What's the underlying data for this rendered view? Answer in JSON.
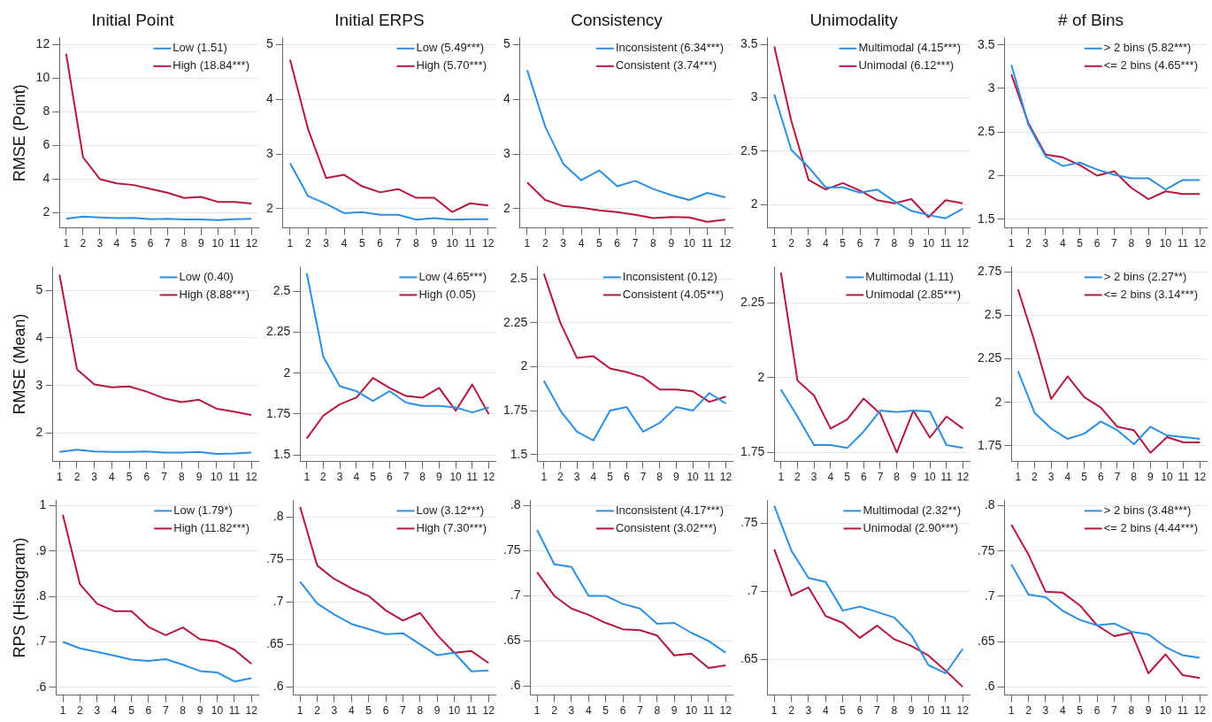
{
  "chart_data": [
    {
      "type": "line",
      "title": "Initial Point",
      "ylabel": "RMSE (Point)",
      "x": [
        1,
        2,
        3,
        4,
        5,
        6,
        7,
        8,
        9,
        10,
        11,
        12
      ],
      "xlim": [
        0.6,
        12.4
      ],
      "xticks": [
        1,
        2,
        3,
        4,
        5,
        6,
        7,
        8,
        9,
        10,
        11,
        12
      ],
      "ylim": [
        1.1,
        12.4
      ],
      "yticks": [
        2,
        4,
        6,
        8,
        10,
        12
      ],
      "grid": "y",
      "legend": "top right",
      "marker": "none",
      "series": [
        {
          "name": "Low (1.51)",
          "color": "#2b8fe6",
          "values": [
            1.65,
            1.78,
            1.72,
            1.68,
            1.7,
            1.62,
            1.64,
            1.6,
            1.6,
            1.57,
            1.62,
            1.65
          ]
        },
        {
          "name": "High (18.84***)",
          "color": "#b5173d",
          "values": [
            11.45,
            5.3,
            4.0,
            3.75,
            3.65,
            3.42,
            3.2,
            2.88,
            2.95,
            2.65,
            2.65,
            2.55
          ]
        }
      ]
    },
    {
      "type": "line",
      "title": "Initial ERPS",
      "x": [
        1,
        2,
        3,
        4,
        5,
        6,
        7,
        8,
        9,
        10,
        11,
        12
      ],
      "xlim": [
        0.6,
        12.4
      ],
      "xticks": [
        1,
        2,
        3,
        4,
        5,
        6,
        7,
        8,
        9,
        10,
        11,
        12
      ],
      "ylim": [
        1.65,
        5.12
      ],
      "yticks": [
        2,
        3,
        4,
        5
      ],
      "grid": "y",
      "legend": "top right",
      "marker": "none",
      "series": [
        {
          "name": "Low (5.49***)",
          "color": "#2b8fe6",
          "values": [
            2.83,
            2.23,
            2.09,
            1.92,
            1.94,
            1.89,
            1.89,
            1.8,
            1.83,
            1.8,
            1.81,
            1.81
          ]
        },
        {
          "name": "High (5.70***)",
          "color": "#b5173d",
          "values": [
            4.72,
            3.45,
            2.56,
            2.62,
            2.41,
            2.3,
            2.36,
            2.2,
            2.2,
            1.94,
            2.1,
            2.06
          ]
        }
      ]
    },
    {
      "type": "line",
      "title": "Consistency",
      "x": [
        1,
        2,
        3,
        4,
        5,
        6,
        7,
        8,
        9,
        10,
        11,
        12
      ],
      "xlim": [
        0.6,
        12.4
      ],
      "xticks": [
        1,
        2,
        3,
        4,
        5,
        6,
        7,
        8,
        9,
        10,
        11,
        12
      ],
      "ylim": [
        1.65,
        5.12
      ],
      "yticks": [
        2,
        3,
        4,
        5
      ],
      "grid": "y",
      "legend": "top right",
      "marker": "none",
      "series": [
        {
          "name": "Inconsistent (6.34***)",
          "color": "#2b8fe6",
          "values": [
            4.53,
            3.5,
            2.82,
            2.52,
            2.7,
            2.41,
            2.51,
            2.36,
            2.25,
            2.16,
            2.29,
            2.21
          ]
        },
        {
          "name": "Consistent (3.74***)",
          "color": "#b5173d",
          "values": [
            2.48,
            2.16,
            2.05,
            2.02,
            1.97,
            1.94,
            1.89,
            1.83,
            1.85,
            1.84,
            1.76,
            1.8
          ]
        }
      ]
    },
    {
      "type": "line",
      "title": "Unimodality",
      "x": [
        1,
        2,
        3,
        4,
        5,
        6,
        7,
        8,
        9,
        10,
        11,
        12
      ],
      "xlim": [
        0.6,
        12.4
      ],
      "xticks": [
        1,
        2,
        3,
        4,
        5,
        6,
        7,
        8,
        9,
        10,
        11,
        12
      ],
      "ylim": [
        1.78,
        3.56
      ],
      "yticks": [
        2,
        2.5,
        3,
        3.5
      ],
      "grid": "y",
      "legend": "top right",
      "marker": "none",
      "series": [
        {
          "name": "Multimodal (4.15***)",
          "color": "#2b8fe6",
          "values": [
            3.03,
            2.51,
            2.35,
            2.16,
            2.16,
            2.11,
            2.14,
            2.03,
            1.94,
            1.9,
            1.87,
            1.96
          ]
        },
        {
          "name": "Unimodal (6.12***)",
          "color": "#b5173d",
          "values": [
            3.48,
            2.78,
            2.23,
            2.14,
            2.2,
            2.13,
            2.04,
            2.01,
            2.05,
            1.88,
            2.04,
            2.01
          ]
        }
      ]
    },
    {
      "type": "line",
      "title": "# of Bins",
      "x": [
        1,
        2,
        3,
        4,
        5,
        6,
        7,
        8,
        9,
        10,
        11,
        12
      ],
      "xlim": [
        0.6,
        12.4
      ],
      "xticks": [
        1,
        2,
        3,
        4,
        5,
        6,
        7,
        8,
        9,
        10,
        11,
        12
      ],
      "ylim": [
        1.4,
        3.58
      ],
      "yticks": [
        1.5,
        2,
        2.5,
        3,
        3.5
      ],
      "grid": "y",
      "legend": "top right",
      "marker": "none",
      "series": [
        {
          "name": "> 2 bins (5.82***)",
          "color": "#2b8fe6",
          "values": [
            3.27,
            2.58,
            2.22,
            2.11,
            2.15,
            2.07,
            2.01,
            1.97,
            1.97,
            1.84,
            1.95,
            1.95
          ]
        },
        {
          "name": "<= 2 bins (4.65***)",
          "color": "#b5173d",
          "values": [
            3.16,
            2.6,
            2.24,
            2.21,
            2.12,
            2.0,
            2.05,
            1.86,
            1.73,
            1.82,
            1.79,
            1.79
          ]
        }
      ]
    },
    {
      "type": "line",
      "ylabel": "RMSE (Mean)",
      "x": [
        1,
        2,
        3,
        4,
        5,
        6,
        7,
        8,
        9,
        10,
        11,
        12
      ],
      "xlim": [
        0.6,
        12.4
      ],
      "xticks": [
        1,
        2,
        3,
        4,
        5,
        6,
        7,
        8,
        9,
        10,
        11,
        12
      ],
      "ylim": [
        1.4,
        5.5
      ],
      "yticks": [
        2,
        3,
        4,
        5
      ],
      "grid": "y",
      "legend": "top right",
      "marker": "none",
      "series": [
        {
          "name": "Low (0.40)",
          "color": "#2b8fe6",
          "values": [
            1.6,
            1.65,
            1.61,
            1.6,
            1.6,
            1.61,
            1.59,
            1.59,
            1.6,
            1.56,
            1.57,
            1.59
          ]
        },
        {
          "name": "High (8.88***)",
          "color": "#b5173d",
          "values": [
            5.33,
            3.34,
            3.02,
            2.96,
            2.98,
            2.87,
            2.73,
            2.65,
            2.7,
            2.51,
            2.45,
            2.38
          ]
        }
      ]
    },
    {
      "type": "line",
      "x": [
        1,
        2,
        3,
        4,
        5,
        6,
        7,
        8,
        9,
        10,
        11,
        12
      ],
      "xlim": [
        0.6,
        12.4
      ],
      "xticks": [
        1,
        2,
        3,
        4,
        5,
        6,
        7,
        8,
        9,
        10,
        11,
        12
      ],
      "ylim": [
        1.46,
        2.65
      ],
      "yticks": [
        1.5,
        1.75,
        2,
        2.25,
        2.5
      ],
      "grid": "y",
      "legend": "top right",
      "marker": "none",
      "series": [
        {
          "name": "Low (4.65***)",
          "color": "#2b8fe6",
          "values": [
            2.61,
            2.1,
            1.92,
            1.89,
            1.83,
            1.89,
            1.82,
            1.8,
            1.8,
            1.79,
            1.76,
            1.79
          ]
        },
        {
          "name": "High (0.05)",
          "color": "#b5173d",
          "values": [
            1.6,
            1.74,
            1.81,
            1.85,
            1.97,
            1.91,
            1.86,
            1.85,
            1.91,
            1.77,
            1.93,
            1.75
          ]
        }
      ]
    },
    {
      "type": "line",
      "x": [
        1,
        2,
        3,
        4,
        5,
        6,
        7,
        8,
        9,
        10,
        11,
        12
      ],
      "xlim": [
        0.6,
        12.4
      ],
      "xticks": [
        1,
        2,
        3,
        4,
        5,
        6,
        7,
        8,
        9,
        10,
        11,
        12
      ],
      "ylim": [
        1.46,
        2.57
      ],
      "yticks": [
        1.5,
        1.75,
        2,
        2.25,
        2.5
      ],
      "grid": "y",
      "legend": "top right",
      "marker": "none",
      "series": [
        {
          "name": "Inconsistent (0.12)",
          "color": "#2b8fe6",
          "values": [
            1.92,
            1.75,
            1.63,
            1.58,
            1.75,
            1.77,
            1.63,
            1.68,
            1.77,
            1.75,
            1.85,
            1.79
          ]
        },
        {
          "name": "Consistent (4.05***)",
          "color": "#b5173d",
          "values": [
            2.53,
            2.25,
            2.05,
            2.06,
            1.99,
            1.97,
            1.94,
            1.87,
            1.87,
            1.86,
            1.8,
            1.83
          ]
        }
      ]
    },
    {
      "type": "line",
      "x": [
        1,
        2,
        3,
        4,
        5,
        6,
        7,
        8,
        9,
        10,
        11,
        12
      ],
      "xlim": [
        0.6,
        12.4
      ],
      "xticks": [
        1,
        2,
        3,
        4,
        5,
        6,
        7,
        8,
        9,
        10,
        11,
        12
      ],
      "ylim": [
        1.72,
        2.37
      ],
      "yticks": [
        1.75,
        2,
        2.25
      ],
      "grid": "y",
      "legend": "top right",
      "marker": "none",
      "series": [
        {
          "name": "Multimodal (1.11)",
          "color": "#2b8fe6",
          "values": [
            1.96,
            1.87,
            1.775,
            1.775,
            1.765,
            1.82,
            1.89,
            1.885,
            1.89,
            1.887,
            1.775,
            1.765
          ]
        },
        {
          "name": "Unimodal (2.85***)",
          "color": "#b5173d",
          "values": [
            2.35,
            1.99,
            1.94,
            1.83,
            1.86,
            1.93,
            1.88,
            1.75,
            1.89,
            1.8,
            1.87,
            1.83
          ]
        }
      ]
    },
    {
      "type": "line",
      "x": [
        1,
        2,
        3,
        4,
        5,
        6,
        7,
        8,
        9,
        10,
        11,
        12
      ],
      "xlim": [
        0.6,
        12.4
      ],
      "xticks": [
        1,
        2,
        3,
        4,
        5,
        6,
        7,
        8,
        9,
        10,
        11,
        12
      ],
      "ylim": [
        1.66,
        2.78
      ],
      "yticks": [
        1.75,
        2,
        2.25,
        2.5,
        2.75
      ],
      "grid": "y",
      "legend": "top right",
      "marker": "none",
      "series": [
        {
          "name": "> 2 bins (2.27**)",
          "color": "#2b8fe6",
          "values": [
            2.18,
            1.94,
            1.85,
            1.79,
            1.82,
            1.89,
            1.84,
            1.76,
            1.86,
            1.81,
            1.8,
            1.79
          ]
        },
        {
          "name": "<= 2 bins (3.14***)",
          "color": "#b5173d",
          "values": [
            2.65,
            2.35,
            2.02,
            2.15,
            2.03,
            1.97,
            1.86,
            1.84,
            1.71,
            1.8,
            1.77,
            1.77
          ]
        }
      ]
    },
    {
      "type": "line",
      "ylabel": "RPS (Histogram)",
      "x": [
        1,
        2,
        3,
        4,
        5,
        6,
        7,
        8,
        9,
        10,
        11,
        12
      ],
      "xlim": [
        0.6,
        12.4
      ],
      "xticks": [
        1,
        2,
        3,
        4,
        5,
        6,
        7,
        8,
        9,
        10,
        11,
        12
      ],
      "ylim": [
        0.583,
        1.012
      ],
      "yticks": [
        {
          "value": 0.6,
          "label": ".6"
        },
        {
          "value": 0.7,
          "label": ".7"
        },
        {
          "value": 0.8,
          "label": ".8"
        },
        {
          "value": 0.9,
          "label": ".9"
        },
        1
      ],
      "grid": "y",
      "legend": "top right",
      "marker": "none",
      "series": [
        {
          "name": "Low (1.79*)",
          "color": "#2b8fe6",
          "values": [
            0.7,
            0.686,
            0.678,
            0.67,
            0.661,
            0.658,
            0.662,
            0.65,
            0.636,
            0.633,
            0.613,
            0.62
          ]
        },
        {
          "name": "High (11.82***)",
          "color": "#b5173d",
          "values": [
            0.98,
            0.827,
            0.784,
            0.768,
            0.768,
            0.733,
            0.715,
            0.732,
            0.706,
            0.701,
            0.683,
            0.652
          ]
        }
      ]
    },
    {
      "type": "line",
      "x": [
        1,
        2,
        3,
        4,
        5,
        6,
        7,
        8,
        9,
        10,
        11,
        12
      ],
      "xlim": [
        0.6,
        12.4
      ],
      "xticks": [
        1,
        2,
        3,
        4,
        5,
        6,
        7,
        8,
        9,
        10,
        11,
        12
      ],
      "ylim": [
        0.59,
        0.82
      ],
      "yticks": [
        {
          "value": 0.6,
          "label": ".6"
        },
        {
          "value": 0.65,
          "label": ".65"
        },
        {
          "value": 0.7,
          "label": ".7"
        },
        {
          "value": 0.75,
          "label": ".75"
        },
        {
          "value": 0.8,
          "label": ".8"
        }
      ],
      "grid": "y",
      "legend": "top right",
      "marker": "none",
      "series": [
        {
          "name": "Low (3.12***)",
          "color": "#2b8fe6",
          "values": [
            0.724,
            0.698,
            0.685,
            0.674,
            0.668,
            0.662,
            0.663,
            0.65,
            0.637,
            0.64,
            0.618,
            0.619
          ]
        },
        {
          "name": "High (7.30***)",
          "color": "#b5173d",
          "values": [
            0.812,
            0.743,
            0.727,
            0.716,
            0.707,
            0.69,
            0.678,
            0.687,
            0.661,
            0.64,
            0.642,
            0.628
          ]
        }
      ]
    },
    {
      "type": "line",
      "x": [
        1,
        2,
        3,
        4,
        5,
        6,
        7,
        8,
        9,
        10,
        11,
        12
      ],
      "xlim": [
        0.6,
        12.4
      ],
      "xticks": [
        1,
        2,
        3,
        4,
        5,
        6,
        7,
        8,
        9,
        10,
        11,
        12
      ],
      "ylim": [
        0.59,
        0.806
      ],
      "yticks": [
        {
          "value": 0.6,
          "label": ".6"
        },
        {
          "value": 0.65,
          "label": ".65"
        },
        {
          "value": 0.7,
          "label": ".7"
        },
        {
          "value": 0.75,
          "label": ".75"
        },
        {
          "value": 0.8,
          "label": ".8"
        }
      ],
      "grid": "y",
      "legend": "top right",
      "marker": "none",
      "series": [
        {
          "name": "Inconsistent (4.17***)",
          "color": "#2b8fe6",
          "values": [
            0.773,
            0.735,
            0.732,
            0.7,
            0.7,
            0.691,
            0.686,
            0.669,
            0.67,
            0.659,
            0.65,
            0.637
          ]
        },
        {
          "name": "Consistent (3.02***)",
          "color": "#b5173d",
          "values": [
            0.726,
            0.7,
            0.686,
            0.679,
            0.67,
            0.663,
            0.662,
            0.656,
            0.634,
            0.636,
            0.62,
            0.623
          ]
        }
      ]
    },
    {
      "type": "line",
      "x": [
        1,
        2,
        3,
        4,
        5,
        6,
        7,
        8,
        9,
        10,
        11,
        12
      ],
      "xlim": [
        0.6,
        12.4
      ],
      "xticks": [
        1,
        2,
        3,
        4,
        5,
        6,
        7,
        8,
        9,
        10,
        11,
        12
      ],
      "ylim": [
        0.624,
        0.767
      ],
      "yticks": [
        {
          "value": 0.65,
          "label": ".65"
        },
        {
          "value": 0.7,
          "label": ".7"
        },
        {
          "value": 0.75,
          "label": ".75"
        }
      ],
      "grid": "y",
      "legend": "top right",
      "marker": "none",
      "series": [
        {
          "name": "Multimodal (2.32**)",
          "color": "#2b8fe6",
          "values": [
            0.763,
            0.73,
            0.71,
            0.707,
            0.686,
            0.689,
            0.685,
            0.681,
            0.668,
            0.646,
            0.64,
            0.658
          ]
        },
        {
          "name": "Unimodal (2.90***)",
          "color": "#b5173d",
          "values": [
            0.731,
            0.697,
            0.703,
            0.682,
            0.677,
            0.666,
            0.675,
            0.665,
            0.66,
            0.653,
            0.642,
            0.63
          ]
        }
      ]
    },
    {
      "type": "line",
      "x": [
        1,
        2,
        3,
        4,
        5,
        6,
        7,
        8,
        9,
        10,
        11,
        12
      ],
      "xlim": [
        0.6,
        12.4
      ],
      "xticks": [
        1,
        2,
        3,
        4,
        5,
        6,
        7,
        8,
        9,
        10,
        11,
        12
      ],
      "ylim": [
        0.591,
        0.806
      ],
      "yticks": [
        {
          "value": 0.6,
          "label": ".6"
        },
        {
          "value": 0.65,
          "label": ".65"
        },
        {
          "value": 0.7,
          "label": ".7"
        },
        {
          "value": 0.75,
          "label": ".75"
        },
        {
          "value": 0.8,
          "label": ".8"
        }
      ],
      "grid": "y",
      "legend": "top right",
      "marker": "none",
      "series": [
        {
          "name": "> 2 bins (3.48***)",
          "color": "#2b8fe6",
          "values": [
            0.735,
            0.702,
            0.699,
            0.684,
            0.674,
            0.668,
            0.67,
            0.661,
            0.658,
            0.644,
            0.635,
            0.632
          ]
        },
        {
          "name": "<= 2 bins (4.44***)",
          "color": "#b5173d",
          "values": [
            0.779,
            0.746,
            0.705,
            0.704,
            0.69,
            0.668,
            0.656,
            0.66,
            0.615,
            0.636,
            0.613,
            0.61
          ]
        }
      ]
    }
  ]
}
